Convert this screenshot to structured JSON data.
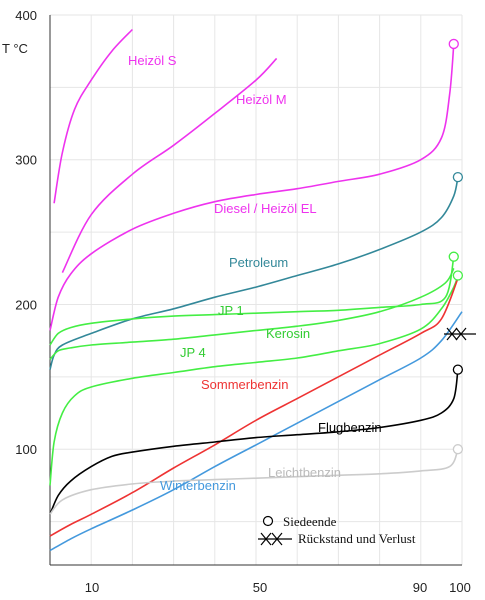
{
  "chart_data": {
    "type": "line",
    "ylabel": "T  °C",
    "xlim": [
      0,
      100
    ],
    "ylim": [
      20,
      400
    ],
    "grid": true,
    "y_ticks": [
      "400",
      "300",
      "200",
      "100"
    ],
    "x_ticks": [
      "10",
      "50",
      "90",
      "100"
    ],
    "series": [
      {
        "name": "Heizöl S",
        "color": "#ee33ee",
        "x": [
          1,
          3,
          6,
          10,
          15,
          20
        ],
        "y": [
          270,
          305,
          335,
          355,
          375,
          390
        ]
      },
      {
        "name": "Heizöl M",
        "color": "#ee33ee",
        "x": [
          3,
          10,
          20,
          30,
          40,
          50,
          55
        ],
        "y": [
          222,
          262,
          290,
          310,
          332,
          355,
          370
        ]
      },
      {
        "name": "Diesel / Heizöl EL",
        "color": "#ee33ee",
        "x": [
          0,
          2,
          5,
          10,
          20,
          30,
          40,
          50,
          60,
          70,
          80,
          90,
          95,
          97,
          98
        ],
        "y": [
          182,
          205,
          221,
          235,
          252,
          263,
          271,
          276,
          280,
          285,
          290,
          300,
          315,
          345,
          380
        ]
      },
      {
        "name": "Petroleum",
        "color": "#338899",
        "x": [
          0,
          1,
          3,
          10,
          20,
          30,
          40,
          50,
          60,
          70,
          80,
          90,
          95,
          98,
          99
        ],
        "y": [
          155,
          165,
          172,
          180,
          190,
          197,
          205,
          212,
          220,
          228,
          238,
          250,
          260,
          275,
          288
        ]
      },
      {
        "name": "JP 1",
        "color": "#44ee44",
        "x": [
          0,
          2,
          5,
          10,
          20,
          30,
          40,
          50,
          60,
          70,
          80,
          90,
          96,
          98
        ],
        "y": [
          172,
          180,
          184,
          187,
          190,
          192,
          193,
          194,
          195,
          196,
          198,
          200,
          205,
          233
        ]
      },
      {
        "name": "Kerosin",
        "color": "#44ee44",
        "x": [
          0,
          2,
          5,
          10,
          20,
          30,
          40,
          50,
          60,
          70,
          80,
          90,
          96,
          98
        ],
        "y": [
          162,
          168,
          170,
          172,
          174,
          176,
          179,
          182,
          185,
          189,
          195,
          205,
          215,
          225
        ]
      },
      {
        "name": "JP 4",
        "color": "#44ee44",
        "x": [
          0,
          1,
          3,
          6,
          10,
          20,
          30,
          40,
          50,
          60,
          70,
          80,
          90,
          95,
          98,
          99
        ],
        "y": [
          75,
          105,
          125,
          137,
          143,
          149,
          153,
          157,
          160,
          163,
          168,
          173,
          183,
          197,
          212,
          220
        ]
      },
      {
        "name": "Sommerbenzin",
        "color": "#ee3333",
        "x": [
          0,
          5,
          10,
          20,
          30,
          40,
          50,
          60,
          70,
          80,
          90,
          95,
          99
        ],
        "y": [
          40,
          48,
          55,
          70,
          87,
          103,
          120,
          135,
          150,
          165,
          180,
          190,
          218
        ]
      },
      {
        "name": "Winterbenzin",
        "color": "#4499dd",
        "x": [
          0,
          5,
          10,
          20,
          30,
          40,
          50,
          60,
          70,
          80,
          90,
          95,
          100
        ],
        "y": [
          30,
          38,
          45,
          58,
          72,
          88,
          103,
          118,
          133,
          148,
          163,
          175,
          195
        ]
      },
      {
        "name": "Flugbenzin",
        "color": "#000000",
        "x": [
          0,
          2,
          5,
          10,
          15,
          20,
          30,
          40,
          50,
          60,
          70,
          80,
          90,
          95,
          98,
          99
        ],
        "y": [
          55,
          68,
          78,
          88,
          95,
          98,
          102,
          105,
          108,
          110,
          112,
          115,
          120,
          125,
          135,
          155
        ]
      },
      {
        "name": "Leichtbenzin",
        "color": "#cccccc",
        "x": [
          0,
          3,
          10,
          20,
          30,
          40,
          50,
          60,
          70,
          80,
          90,
          97,
          99
        ],
        "y": [
          55,
          65,
          72,
          76,
          78,
          79,
          80,
          81,
          82,
          83,
          85,
          88,
          100
        ]
      }
    ],
    "labels": [
      {
        "text": "Heizöl S",
        "color": "#ee33ee"
      },
      {
        "text": "Heizöl M",
        "color": "#ee33ee"
      },
      {
        "text": "Diesel / Heizöl EL",
        "color": "#ee33ee"
      },
      {
        "text": "Petroleum",
        "color": "#338899"
      },
      {
        "text": "JP 1",
        "color": "#33cc33"
      },
      {
        "text": "Kerosin",
        "color": "#33cc33"
      },
      {
        "text": "JP 4",
        "color": "#33cc33"
      },
      {
        "text": "Sommerbenzin",
        "color": "#ee3333"
      },
      {
        "text": "Flugbenzin",
        "color": "#000000"
      },
      {
        "text": "Leichtbenzin",
        "color": "#bbbbbb"
      },
      {
        "text": "Winterbenzin",
        "color": "#4499dd"
      }
    ],
    "legend": [
      {
        "symbol": "circle",
        "text": "Siedeende"
      },
      {
        "symbol": "star-line",
        "text": "Rückstand und Verlust"
      }
    ]
  }
}
